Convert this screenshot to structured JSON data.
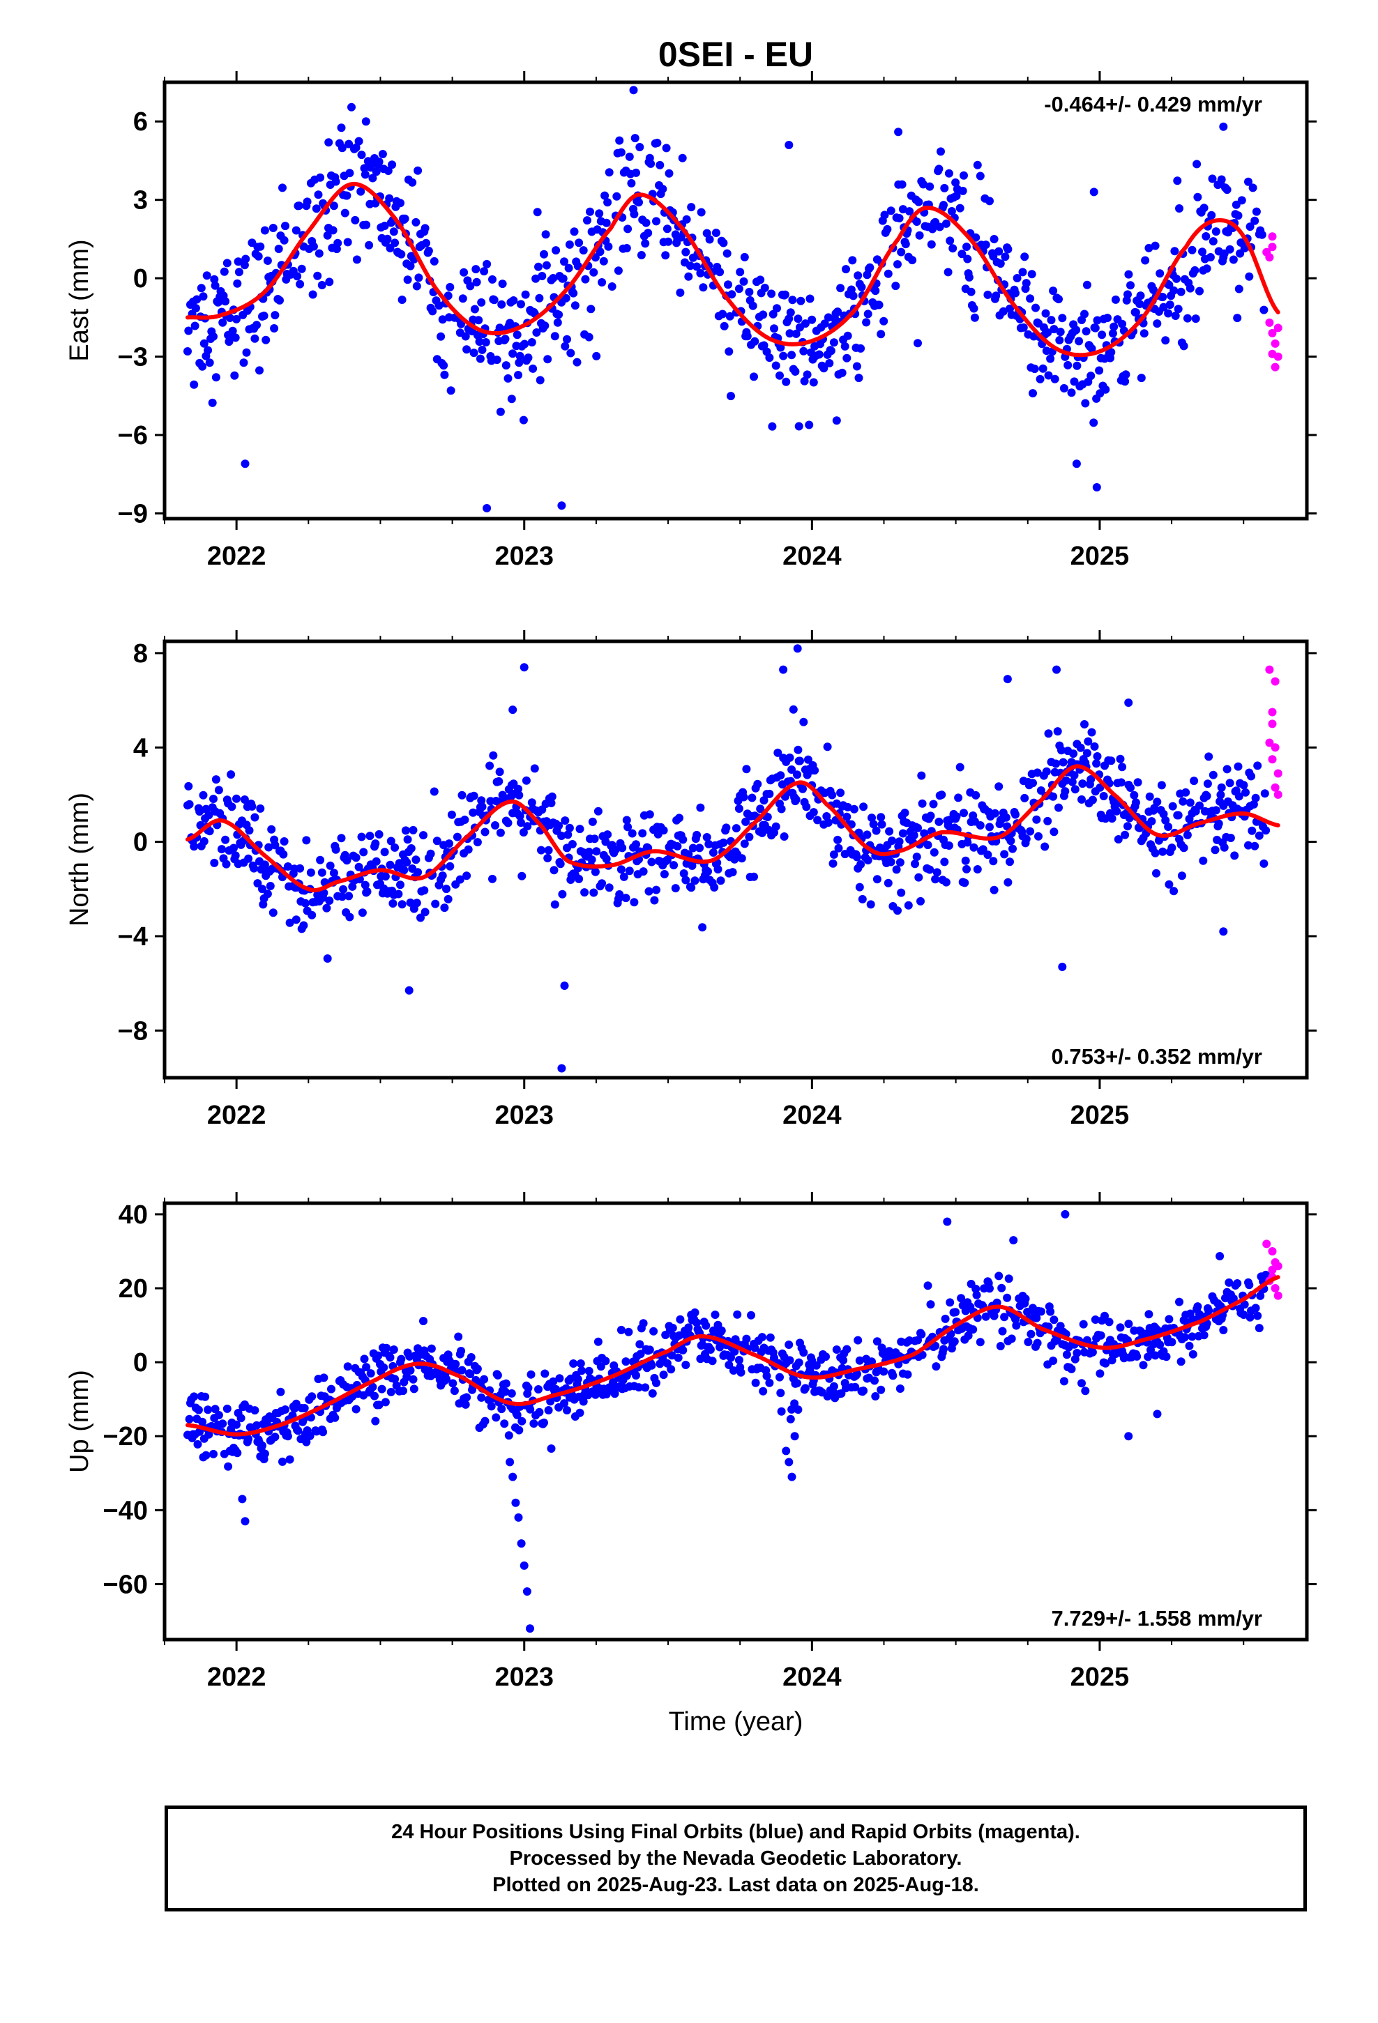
{
  "title": "0SEI - EU",
  "colors": {
    "final": "#0000ff",
    "rapid": "#ff00ff",
    "fit": "#ff0000"
  },
  "chart_data": [
    {
      "type": "scatter",
      "component": "east",
      "ylabel": "East (mm)",
      "xlabel": "",
      "xlim": [
        2021.75,
        2025.72
      ],
      "ylim": [
        -9.2,
        7.5
      ],
      "yticks": [
        -9,
        -6,
        -3,
        0,
        3,
        6
      ],
      "xticks": [
        2022,
        2023,
        2024,
        2025
      ],
      "rate_label": "-0.464+/- 0.429 mm/yr",
      "rate_position": "top-right",
      "trend": {
        "t0": 2023.5,
        "offset": 0.0,
        "rate": -0.464
      },
      "fit_knots": [
        [
          2021.83,
          -1.5
        ],
        [
          2021.95,
          -1.4
        ],
        [
          2022.1,
          -0.5
        ],
        [
          2022.25,
          1.8
        ],
        [
          2022.4,
          3.6
        ],
        [
          2022.55,
          2.3
        ],
        [
          2022.7,
          -0.5
        ],
        [
          2022.85,
          -2.0
        ],
        [
          2023.0,
          -1.8
        ],
        [
          2023.15,
          -0.4
        ],
        [
          2023.3,
          1.9
        ],
        [
          2023.4,
          3.2
        ],
        [
          2023.55,
          1.9
        ],
        [
          2023.7,
          -0.7
        ],
        [
          2023.85,
          -2.3
        ],
        [
          2024.0,
          -2.4
        ],
        [
          2024.15,
          -1.2
        ],
        [
          2024.3,
          1.5
        ],
        [
          2024.4,
          2.7
        ],
        [
          2024.55,
          1.5
        ],
        [
          2024.7,
          -1.0
        ],
        [
          2024.85,
          -2.7
        ],
        [
          2025.0,
          -2.8
        ],
        [
          2025.15,
          -1.5
        ],
        [
          2025.3,
          1.2
        ],
        [
          2025.4,
          2.2
        ],
        [
          2025.5,
          1.6
        ],
        [
          2025.62,
          -1.3
        ]
      ],
      "scatter_sigma": 1.25,
      "outliers": [
        [
          2022.03,
          -7.1
        ],
        [
          2022.32,
          5.2
        ],
        [
          2022.45,
          6.0
        ],
        [
          2022.87,
          -8.8
        ],
        [
          2023.13,
          -8.7
        ],
        [
          2023.38,
          7.2
        ],
        [
          2023.92,
          5.1
        ],
        [
          2024.3,
          5.6
        ],
        [
          2024.92,
          -7.1
        ],
        [
          2024.99,
          -8.0
        ],
        [
          2025.43,
          5.8
        ],
        [
          2024.98,
          3.3
        ],
        [
          2023.55,
          4.6
        ]
      ],
      "rapid_points": [
        [
          2025.58,
          1.0
        ],
        [
          2025.59,
          0.8
        ],
        [
          2025.6,
          1.6
        ],
        [
          2025.6,
          1.2
        ],
        [
          2025.59,
          -1.7
        ],
        [
          2025.6,
          -2.1
        ],
        [
          2025.61,
          -2.5
        ],
        [
          2025.6,
          -2.9
        ],
        [
          2025.61,
          -3.4
        ],
        [
          2025.62,
          -1.9
        ],
        [
          2025.62,
          -3.0
        ]
      ]
    },
    {
      "type": "scatter",
      "component": "north",
      "ylabel": "North (mm)",
      "xlabel": "",
      "xlim": [
        2021.75,
        2025.72
      ],
      "ylim": [
        -10.0,
        8.5
      ],
      "yticks": [
        -8,
        -4,
        0,
        4,
        8
      ],
      "xticks": [
        2022,
        2023,
        2024,
        2025
      ],
      "rate_label": "0.753+/- 0.352 mm/yr",
      "rate_position": "bottom-right",
      "trend": {
        "t0": 2023.5,
        "offset": 0.0,
        "rate": 0.753
      },
      "fit_knots": [
        [
          2021.83,
          0.1
        ],
        [
          2021.95,
          0.9
        ],
        [
          2022.1,
          -0.6
        ],
        [
          2022.25,
          -2.0
        ],
        [
          2022.35,
          -1.7
        ],
        [
          2022.5,
          -1.2
        ],
        [
          2022.65,
          -1.5
        ],
        [
          2022.8,
          0.2
        ],
        [
          2022.95,
          1.7
        ],
        [
          2023.05,
          0.8
        ],
        [
          2023.15,
          -0.8
        ],
        [
          2023.3,
          -1.0
        ],
        [
          2023.45,
          -0.4
        ],
        [
          2023.65,
          -0.8
        ],
        [
          2023.8,
          0.8
        ],
        [
          2023.95,
          2.5
        ],
        [
          2024.05,
          1.6
        ],
        [
          2024.2,
          -0.3
        ],
        [
          2024.3,
          -0.4
        ],
        [
          2024.45,
          0.4
        ],
        [
          2024.65,
          0.2
        ],
        [
          2024.8,
          1.8
        ],
        [
          2024.92,
          3.2
        ],
        [
          2025.05,
          2.0
        ],
        [
          2025.2,
          0.3
        ],
        [
          2025.35,
          0.8
        ],
        [
          2025.5,
          1.2
        ],
        [
          2025.62,
          0.7
        ]
      ],
      "scatter_sigma": 0.95,
      "outliers": [
        [
          2023.0,
          7.4
        ],
        [
          2022.96,
          5.6
        ],
        [
          2023.13,
          -9.6
        ],
        [
          2023.14,
          -6.1
        ],
        [
          2023.9,
          7.3
        ],
        [
          2023.95,
          8.2
        ],
        [
          2022.6,
          -6.3
        ],
        [
          2024.85,
          7.3
        ],
        [
          2024.87,
          -5.3
        ],
        [
          2025.43,
          -3.8
        ],
        [
          2024.68,
          6.9
        ],
        [
          2025.1,
          5.9
        ]
      ],
      "rapid_points": [
        [
          2025.59,
          7.3
        ],
        [
          2025.61,
          6.8
        ],
        [
          2025.6,
          5.5
        ],
        [
          2025.6,
          5.0
        ],
        [
          2025.59,
          4.2
        ],
        [
          2025.61,
          4.0
        ],
        [
          2025.6,
          3.5
        ],
        [
          2025.62,
          2.9
        ],
        [
          2025.61,
          2.3
        ],
        [
          2025.62,
          2.0
        ]
      ]
    },
    {
      "type": "scatter",
      "component": "up",
      "ylabel": "Up (mm)",
      "xlabel": "Time (year)",
      "xlim": [
        2021.75,
        2025.72
      ],
      "ylim": [
        -75,
        43
      ],
      "yticks": [
        -60,
        -40,
        -20,
        0,
        20,
        40
      ],
      "xticks": [
        2022,
        2023,
        2024,
        2025
      ],
      "rate_label": "7.729+/- 1.558 mm/yr",
      "rate_position": "bottom-right",
      "trend": {
        "t0": 2023.5,
        "offset": 0.0,
        "rate": 7.729
      },
      "fit_knots": [
        [
          2021.83,
          -17
        ],
        [
          2022.0,
          -19.5
        ],
        [
          2022.15,
          -17
        ],
        [
          2022.3,
          -12
        ],
        [
          2022.45,
          -6
        ],
        [
          2022.62,
          -0.5
        ],
        [
          2022.75,
          -3
        ],
        [
          2022.95,
          -11
        ],
        [
          2023.1,
          -9
        ],
        [
          2023.3,
          -4
        ],
        [
          2023.5,
          3
        ],
        [
          2023.62,
          7
        ],
        [
          2023.8,
          2
        ],
        [
          2023.98,
          -4
        ],
        [
          2024.15,
          -2
        ],
        [
          2024.35,
          2
        ],
        [
          2024.5,
          10
        ],
        [
          2024.65,
          15
        ],
        [
          2024.8,
          9
        ],
        [
          2025.0,
          4
        ],
        [
          2025.15,
          6
        ],
        [
          2025.35,
          11
        ],
        [
          2025.5,
          17
        ],
        [
          2025.62,
          23
        ]
      ],
      "scatter_sigma": 4.2,
      "outliers": [
        [
          2023.02,
          -72
        ],
        [
          2023.01,
          -62
        ],
        [
          2023.0,
          -55
        ],
        [
          2022.99,
          -49
        ],
        [
          2022.98,
          -42
        ],
        [
          2022.97,
          -38
        ],
        [
          2022.96,
          -31
        ],
        [
          2022.95,
          -27
        ],
        [
          2022.03,
          -43
        ],
        [
          2023.93,
          -31
        ],
        [
          2023.92,
          -27
        ],
        [
          2023.91,
          -24
        ],
        [
          2023.94,
          -20
        ],
        [
          2024.47,
          38
        ],
        [
          2024.88,
          40
        ],
        [
          2025.1,
          -20
        ],
        [
          2025.2,
          -14
        ],
        [
          2022.02,
          -37
        ],
        [
          2024.7,
          33
        ]
      ],
      "rapid_points": [
        [
          2025.58,
          32
        ],
        [
          2025.6,
          30
        ],
        [
          2025.61,
          27
        ],
        [
          2025.6,
          25
        ],
        [
          2025.62,
          26
        ],
        [
          2025.59,
          22
        ],
        [
          2025.61,
          20
        ],
        [
          2025.62,
          18
        ],
        [
          2025.6,
          23
        ]
      ]
    }
  ],
  "caption": {
    "line1": "24 Hour Positions Using Final Orbits (blue) and Rapid Orbits (magenta).",
    "line2": "Processed by the Nevada Geodetic Laboratory.",
    "line3": "Plotted on 2025-Aug-23. Last data on 2025-Aug-18."
  }
}
